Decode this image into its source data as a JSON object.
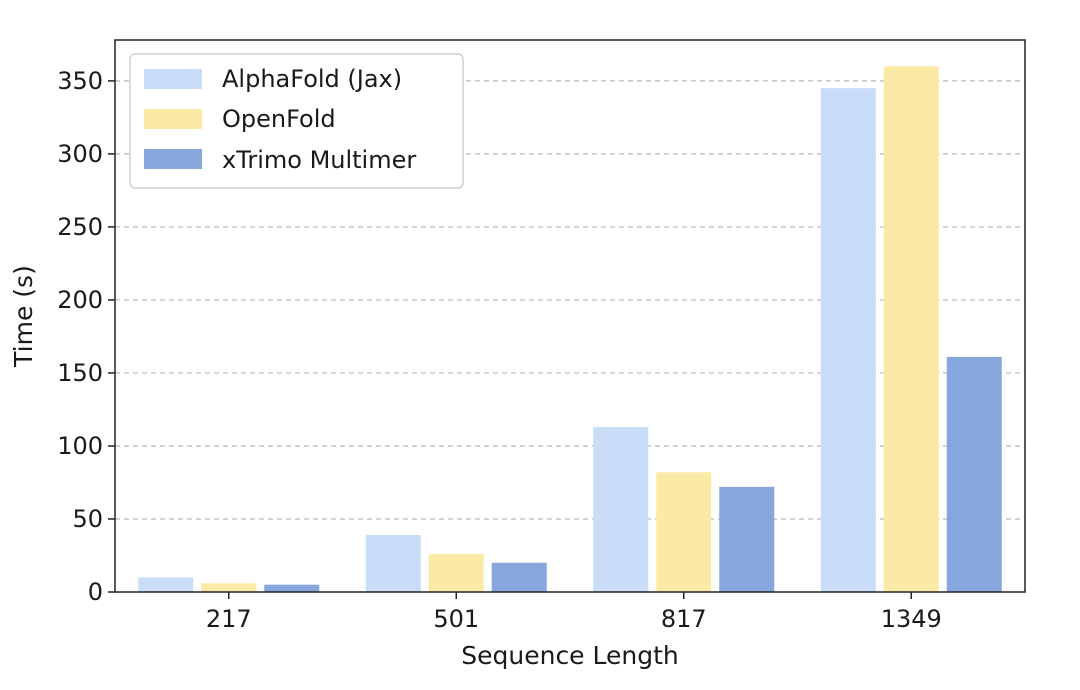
{
  "chart_data": {
    "type": "bar",
    "xlabel": "Sequence Length",
    "ylabel": "Time (s)",
    "categories": [
      "217",
      "501",
      "817",
      "1349"
    ],
    "ylim": [
      0,
      378
    ],
    "yticks": [
      0,
      50,
      100,
      150,
      200,
      250,
      300,
      350
    ],
    "grid": "y-dashed",
    "legend_position": "top-left",
    "series": [
      {
        "name": "AlphaFold (Jax)",
        "color": "#c9dcf8",
        "values": [
          10,
          39,
          113,
          345
        ]
      },
      {
        "name": "OpenFold",
        "color": "#fbeaa6",
        "values": [
          6,
          26,
          82,
          360
        ]
      },
      {
        "name": "xTrimo Multimer",
        "color": "#86a6dc",
        "values": [
          5,
          20,
          72,
          161
        ]
      }
    ]
  }
}
